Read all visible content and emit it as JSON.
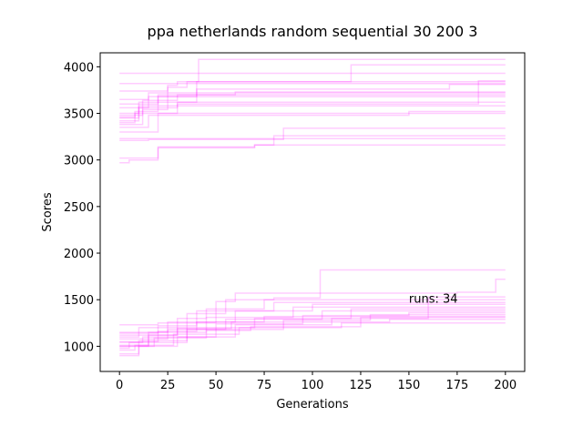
{
  "chart_data": {
    "type": "line",
    "title": "ppa netherlands random sequential 30 200 3",
    "xlabel": "Generations",
    "ylabel": "Scores",
    "xlim": [
      -10,
      210
    ],
    "ylim": [
      730,
      4150
    ],
    "xticks": [
      0,
      25,
      50,
      75,
      100,
      125,
      150,
      175,
      200
    ],
    "yticks": [
      1000,
      1500,
      2000,
      2500,
      3000,
      3500,
      4000
    ],
    "line_color": "#ff00ff",
    "line_alpha": 0.2,
    "grid": false,
    "annotation": {
      "text": "runs: 34",
      "x": 150,
      "y": 1470
    },
    "series": [
      {
        "values": [
          [
            0,
            3930
          ],
          [
            200,
            3930
          ]
        ]
      },
      {
        "values": [
          [
            0,
            3400
          ],
          [
            8,
            3520
          ],
          [
            20,
            3680
          ],
          [
            40,
            3840
          ],
          [
            41,
            4080
          ],
          [
            200,
            4080
          ]
        ]
      },
      {
        "values": [
          [
            0,
            3450
          ],
          [
            10,
            3580
          ],
          [
            25,
            3780
          ],
          [
            35,
            3840
          ],
          [
            120,
            4020
          ],
          [
            200,
            4020
          ]
        ]
      },
      {
        "values": [
          [
            0,
            3820
          ],
          [
            200,
            3820
          ]
        ]
      },
      {
        "values": [
          [
            0,
            3740
          ],
          [
            25,
            3800
          ],
          [
            30,
            3840
          ],
          [
            200,
            3840
          ]
        ]
      },
      {
        "values": [
          [
            0,
            3560
          ],
          [
            15,
            3680
          ],
          [
            40,
            3760
          ],
          [
            170,
            3760
          ],
          [
            171,
            3810
          ],
          [
            200,
            3810
          ]
        ]
      },
      {
        "values": [
          [
            0,
            3600
          ],
          [
            20,
            3700
          ],
          [
            60,
            3730
          ],
          [
            200,
            3730
          ]
        ]
      },
      {
        "values": [
          [
            0,
            3480
          ],
          [
            12,
            3640
          ],
          [
            30,
            3700
          ],
          [
            200,
            3700
          ]
        ]
      },
      {
        "values": [
          [
            0,
            3500
          ],
          [
            10,
            3620
          ],
          [
            40,
            3680
          ],
          [
            200,
            3680
          ]
        ]
      },
      {
        "values": [
          [
            0,
            3420
          ],
          [
            10,
            3560
          ],
          [
            30,
            3620
          ],
          [
            200,
            3620
          ]
        ]
      },
      {
        "values": [
          [
            0,
            3380
          ],
          [
            12,
            3540
          ],
          [
            25,
            3580
          ],
          [
            200,
            3580
          ]
        ]
      },
      {
        "values": [
          [
            0,
            3650
          ],
          [
            15,
            3720
          ],
          [
            200,
            3720
          ]
        ]
      },
      {
        "values": [
          [
            0,
            3300
          ],
          [
            20,
            3500
          ],
          [
            30,
            3600
          ],
          [
            185,
            3600
          ],
          [
            186,
            3850
          ],
          [
            200,
            3850
          ]
        ]
      },
      {
        "values": [
          [
            0,
            3350
          ],
          [
            15,
            3480
          ],
          [
            150,
            3520
          ],
          [
            200,
            3520
          ]
        ]
      },
      {
        "values": [
          [
            0,
            3460
          ],
          [
            8,
            3500
          ],
          [
            200,
            3500
          ]
        ]
      },
      {
        "values": [
          [
            0,
            3230
          ],
          [
            200,
            3230
          ]
        ]
      },
      {
        "values": [
          [
            0,
            3210
          ],
          [
            15,
            3220
          ],
          [
            85,
            3340
          ],
          [
            200,
            3340
          ]
        ]
      },
      {
        "values": [
          [
            0,
            2970
          ],
          [
            5,
            3000
          ],
          [
            20,
            3130
          ],
          [
            70,
            3160
          ],
          [
            80,
            3260
          ],
          [
            200,
            3260
          ]
        ]
      },
      {
        "values": [
          [
            0,
            3020
          ],
          [
            20,
            3140
          ],
          [
            70,
            3160
          ],
          [
            200,
            3160
          ]
        ]
      },
      {
        "values": [
          [
            0,
            1010
          ],
          [
            15,
            1120
          ],
          [
            30,
            1300
          ],
          [
            45,
            1400
          ],
          [
            75,
            1500
          ],
          [
            80,
            1520
          ],
          [
            104,
            1820
          ],
          [
            200,
            1820
          ]
        ]
      },
      {
        "values": [
          [
            0,
            1230
          ],
          [
            20,
            1250
          ],
          [
            50,
            1480
          ],
          [
            60,
            1570
          ],
          [
            175,
            1580
          ],
          [
            195,
            1720
          ],
          [
            200,
            1720
          ]
        ]
      },
      {
        "values": [
          [
            0,
            1100
          ],
          [
            10,
            1200
          ],
          [
            35,
            1350
          ],
          [
            55,
            1500
          ],
          [
            200,
            1500
          ]
        ]
      },
      {
        "values": [
          [
            0,
            1050
          ],
          [
            20,
            1220
          ],
          [
            40,
            1380
          ],
          [
            80,
            1470
          ],
          [
            200,
            1470
          ]
        ]
      },
      {
        "values": [
          [
            0,
            1150
          ],
          [
            25,
            1260
          ],
          [
            60,
            1380
          ],
          [
            100,
            1450
          ],
          [
            200,
            1450
          ]
        ]
      },
      {
        "values": [
          [
            0,
            1000
          ],
          [
            15,
            1150
          ],
          [
            45,
            1310
          ],
          [
            90,
            1420
          ],
          [
            200,
            1420
          ]
        ]
      },
      {
        "values": [
          [
            0,
            920
          ],
          [
            10,
            1060
          ],
          [
            35,
            1200
          ],
          [
            70,
            1300
          ],
          [
            120,
            1400
          ],
          [
            200,
            1400
          ]
        ]
      },
      {
        "values": [
          [
            0,
            1080
          ],
          [
            25,
            1180
          ],
          [
            55,
            1290
          ],
          [
            105,
            1380
          ],
          [
            200,
            1380
          ]
        ]
      },
      {
        "values": [
          [
            0,
            980
          ],
          [
            5,
            1040
          ],
          [
            35,
            1180
          ],
          [
            85,
            1280
          ],
          [
            130,
            1340
          ],
          [
            200,
            1340
          ]
        ]
      },
      {
        "values": [
          [
            0,
            900
          ],
          [
            10,
            1000
          ],
          [
            30,
            1100
          ],
          [
            60,
            1230
          ],
          [
            110,
            1300
          ],
          [
            160,
            1530
          ],
          [
            200,
            1530
          ]
        ]
      },
      {
        "values": [
          [
            0,
            1140
          ],
          [
            20,
            1160
          ],
          [
            40,
            1260
          ],
          [
            75,
            1320
          ],
          [
            200,
            1320
          ]
        ]
      },
      {
        "values": [
          [
            0,
            1040
          ],
          [
            12,
            1100
          ],
          [
            50,
            1240
          ],
          [
            95,
            1330
          ],
          [
            150,
            1360
          ],
          [
            200,
            1360
          ]
        ]
      },
      {
        "values": [
          [
            0,
            1000
          ],
          [
            18,
            1090
          ],
          [
            45,
            1170
          ],
          [
            68,
            1210
          ],
          [
            125,
            1310
          ],
          [
            200,
            1310
          ]
        ]
      },
      {
        "values": [
          [
            0,
            960
          ],
          [
            8,
            1010
          ],
          [
            28,
            1130
          ],
          [
            62,
            1200
          ],
          [
            115,
            1250
          ],
          [
            200,
            1250
          ]
        ]
      },
      {
        "values": [
          [
            0,
            1120
          ],
          [
            30,
            1190
          ],
          [
            58,
            1260
          ],
          [
            140,
            1290
          ],
          [
            200,
            1290
          ]
        ]
      }
    ]
  }
}
